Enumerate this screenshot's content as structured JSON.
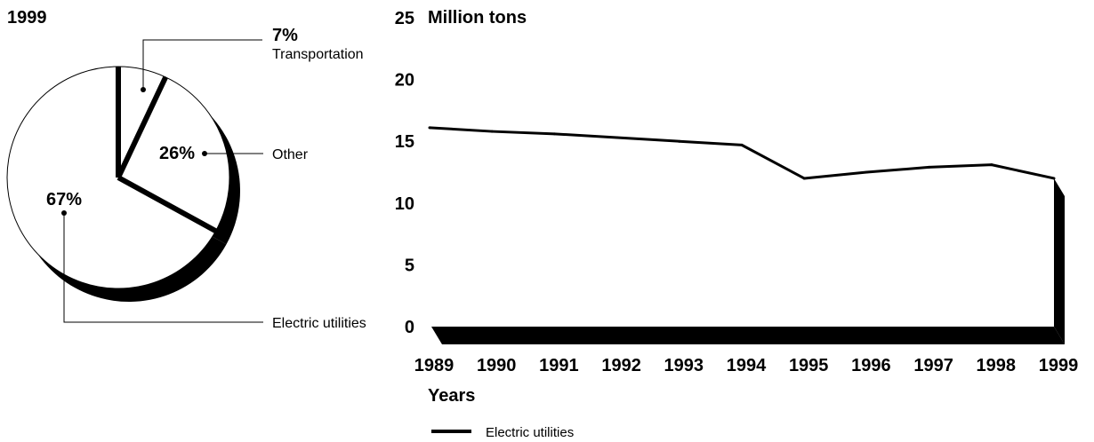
{
  "chart_data": [
    {
      "type": "pie",
      "title": "1999",
      "slices": [
        {
          "label": "Transportation",
          "value": 7,
          "value_label": "7%"
        },
        {
          "label": "Other",
          "value": 26,
          "value_label": "26%"
        },
        {
          "label": "Electric utilities",
          "value": 67,
          "value_label": "67%"
        }
      ],
      "colors": {
        "fill": "#ffffff",
        "stroke": "#000000",
        "shadow": "#000000"
      }
    },
    {
      "type": "area",
      "title": "Million tons",
      "xlabel": "Years",
      "ylabel": "",
      "ylim": [
        0,
        25
      ],
      "y_ticks": [
        0,
        5,
        10,
        15,
        20,
        25
      ],
      "categories": [
        "1989",
        "1990",
        "1991",
        "1992",
        "1993",
        "1994",
        "1995",
        "1996",
        "1997",
        "1998",
        "1999"
      ],
      "series": [
        {
          "name": "Electric utilities",
          "values": [
            16.1,
            15.8,
            15.6,
            15.3,
            15.0,
            14.7,
            12.0,
            12.5,
            12.9,
            13.1,
            12.0
          ]
        }
      ],
      "legend": "bottom-left",
      "grid": false,
      "colors": {
        "line": "#000000",
        "extrusion": "#000000"
      }
    }
  ]
}
